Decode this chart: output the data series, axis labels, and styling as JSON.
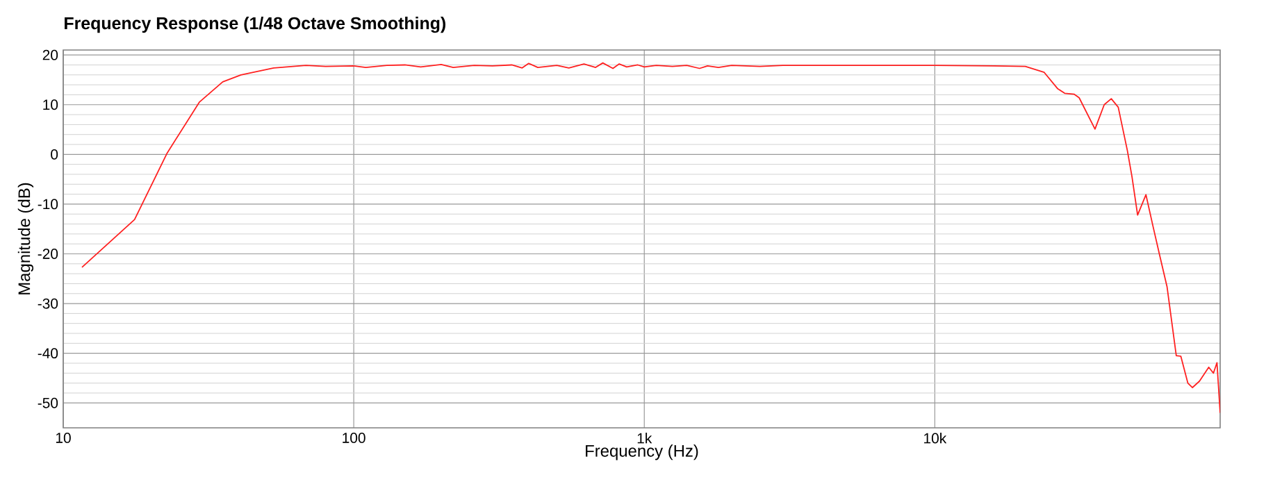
{
  "chart_data": {
    "type": "line",
    "title": "Frequency Response (1/48 Octave Smoothing)",
    "xlabel": "Frequency (Hz)",
    "ylabel": "Magnitude (dB)",
    "log": "x",
    "grid": true,
    "xlim": [
      10,
      96000
    ],
    "ylim": [
      -55,
      21
    ],
    "xticks": [
      {
        "value": 10,
        "label": "10"
      },
      {
        "value": 100,
        "label": "100"
      },
      {
        "value": 1000,
        "label": "1k"
      },
      {
        "value": 10000,
        "label": "10k"
      }
    ],
    "yticks": [
      -50,
      -40,
      -30,
      -20,
      -10,
      0,
      10,
      20
    ],
    "x": [
      11.6,
      17.6,
      22.8,
      29.4,
      35.4,
      40.9,
      53,
      68.5,
      80,
      100,
      110,
      130,
      150,
      170,
      200,
      220,
      260,
      300,
      350,
      380,
      400,
      430,
      500,
      550,
      620,
      680,
      720,
      780,
      820,
      870,
      950,
      1000,
      1100,
      1250,
      1400,
      1550,
      1650,
      1800,
      2000,
      2500,
      3000,
      5000,
      10000,
      16000,
      20500,
      23800,
      26500,
      28000,
      30200,
      31400,
      35600,
      38300,
      40500,
      42800,
      46000,
      47700,
      49900,
      53300,
      56400,
      59600,
      63000,
      67800,
      70300,
      74300,
      77100,
      81500,
      87700,
      91000,
      93600,
      96000
    ],
    "series": [
      {
        "color": "#ff2020",
        "values": [
          -22.7,
          -13.1,
          0.3,
          10.5,
          14.6,
          16.0,
          17.4,
          17.9,
          17.7,
          17.8,
          17.5,
          17.9,
          18.0,
          17.6,
          18.1,
          17.5,
          17.9,
          17.8,
          18.0,
          17.4,
          18.3,
          17.5,
          17.9,
          17.4,
          18.2,
          17.5,
          18.4,
          17.3,
          18.2,
          17.6,
          18.0,
          17.6,
          17.9,
          17.7,
          17.9,
          17.3,
          17.8,
          17.5,
          17.9,
          17.7,
          17.9,
          17.9,
          17.9,
          17.8,
          17.7,
          16.5,
          13.2,
          12.3,
          12.1,
          11.4,
          5.1,
          10.0,
          11.2,
          9.5,
          0.8,
          -4.4,
          -12.2,
          -8.1,
          -14.5,
          -20.6,
          -26.6,
          -40.5,
          -40.6,
          -46.0,
          -46.9,
          -45.6,
          -42.8,
          -44.0,
          -41.9,
          -52.0
        ]
      }
    ]
  }
}
